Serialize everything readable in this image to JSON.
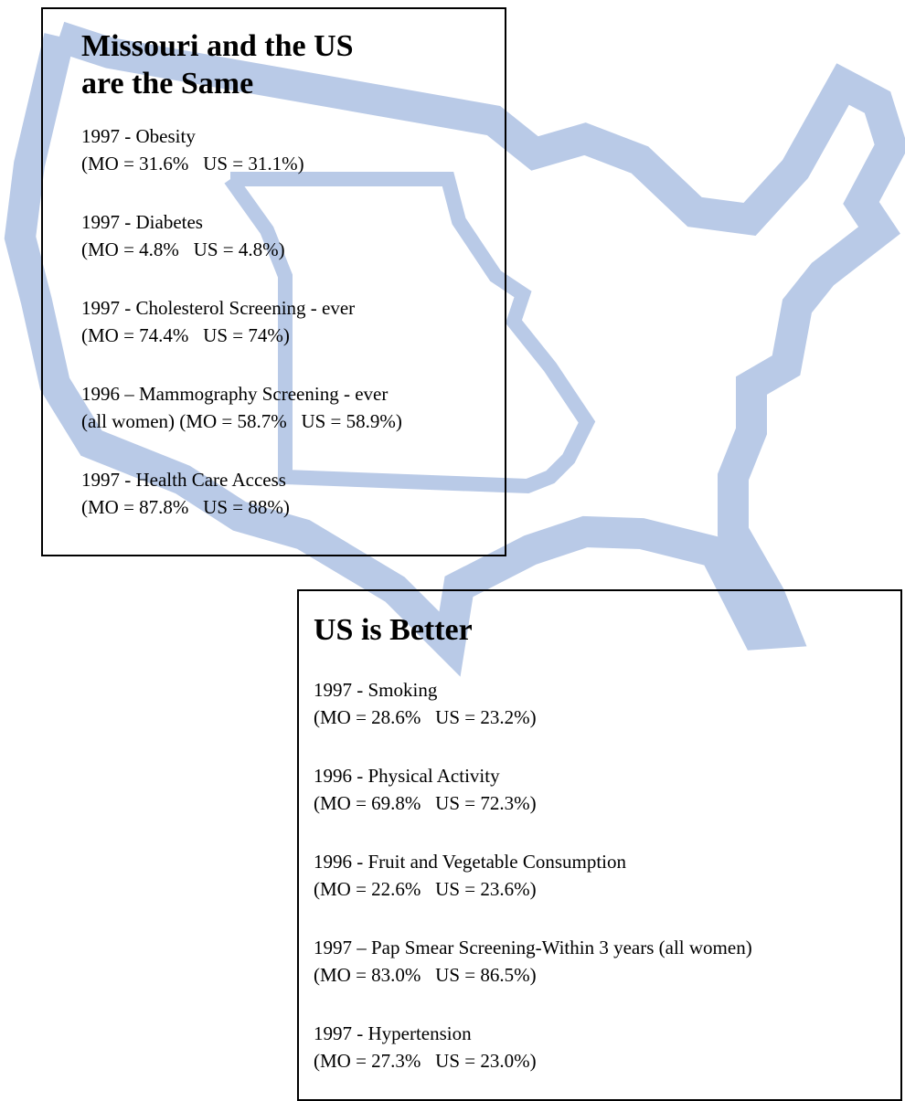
{
  "panels": [
    {
      "title_lines": [
        "Missouri and the US",
        "are the Same"
      ],
      "items": [
        {
          "lines": [
            "1997 - Obesity",
            "(MO = 31.6%   US = 31.1%)"
          ]
        },
        {
          "lines": [
            "1997 - Diabetes",
            "(MO = 4.8%   US = 4.8%)"
          ]
        },
        {
          "lines": [
            "1997 - Cholesterol Screening - ever",
            "(MO = 74.4%   US = 74%)"
          ]
        },
        {
          "lines": [
            "1996 – Mammography Screening - ever",
            "(all women) (MO = 58.7%   US = 58.9%)"
          ]
        },
        {
          "lines": [
            "1997 - Health Care Access",
            "(MO = 87.8%   US = 88%)"
          ]
        }
      ]
    },
    {
      "title_lines": [
        "US is Better"
      ],
      "items": [
        {
          "lines": [
            "1997 - Smoking",
            "(MO = 28.6%   US = 23.2%)"
          ]
        },
        {
          "lines": [
            "1996 - Physical Activity",
            "(MO = 69.8%   US = 72.3%)"
          ]
        },
        {
          "lines": [
            "1996 - Fruit and Vegetable Consumption",
            "(MO = 22.6%   US = 23.6%)"
          ]
        },
        {
          "lines": [
            "1997 – Pap Smear Screening-Within 3 years (all women)",
            "(MO = 83.0%   US = 86.5%)"
          ]
        },
        {
          "lines": [
            "1997 - Hypertension",
            "(MO = 27.3%   US = 23.0%)"
          ]
        }
      ]
    }
  ]
}
